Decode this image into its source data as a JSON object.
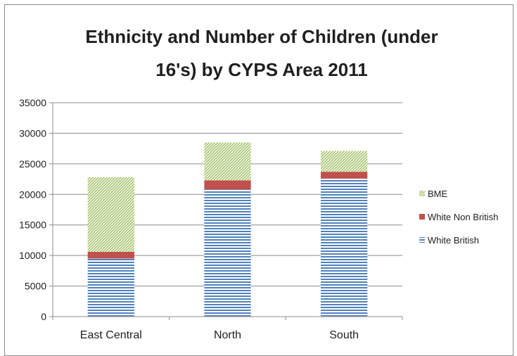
{
  "chart_data": {
    "type": "bar",
    "stacked": true,
    "title_lines": [
      "Ethnicity and Number of Children (under",
      "16's) by CYPS Area 2011"
    ],
    "categories": [
      "East Central",
      "North",
      "South"
    ],
    "series": [
      {
        "name": "White British",
        "values": [
          9500,
          20800,
          22600
        ],
        "color": "#4f81bd",
        "pattern": "horizontal-stripes"
      },
      {
        "name": "White Non British",
        "values": [
          1100,
          1500,
          1100
        ],
        "color": "#c0504d",
        "pattern": "solid"
      },
      {
        "name": "BME",
        "values": [
          12200,
          6200,
          3400
        ],
        "color": "#9bbb59",
        "pattern": "diagonal-stripes"
      }
    ],
    "ylim": [
      0,
      35000
    ],
    "yticks": [
      0,
      5000,
      10000,
      15000,
      20000,
      25000,
      30000,
      35000
    ],
    "grid": true,
    "legend_position": "right",
    "legend_order": [
      "BME",
      "White Non British",
      "White British"
    ]
  }
}
